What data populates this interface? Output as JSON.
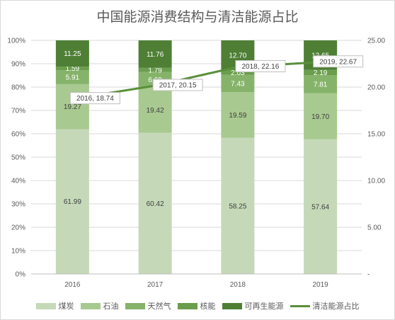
{
  "chart_data": {
    "type": "bar",
    "stacked": true,
    "title": "中国能源消费结构与清洁能源占比",
    "categories": [
      "2016",
      "2017",
      "2018",
      "2019"
    ],
    "series": [
      {
        "name": "煤炭",
        "type": "bar",
        "color": "#c5d9b8",
        "values": [
          61.99,
          60.42,
          58.25,
          57.64
        ]
      },
      {
        "name": "石油",
        "type": "bar",
        "color": "#a8c990",
        "values": [
          19.27,
          19.42,
          19.59,
          19.7
        ]
      },
      {
        "name": "天然气",
        "type": "bar",
        "color": "#86b36a",
        "values": [
          5.91,
          6.6,
          7.43,
          7.81
        ]
      },
      {
        "name": "核能",
        "type": "bar",
        "color": "#6a9e4c",
        "values": [
          1.59,
          1.79,
          2.03,
          2.19
        ]
      },
      {
        "name": "可再生能源",
        "type": "bar",
        "color": "#4e7f35",
        "values": [
          11.25,
          11.76,
          12.7,
          12.65
        ]
      },
      {
        "name": "清洁能源占比",
        "type": "line",
        "axis": "right",
        "color": "#5a8f3a",
        "values": [
          18.74,
          20.15,
          22.16,
          22.67
        ]
      }
    ],
    "line_labels": [
      "2016, 18.74",
      "2017, 20.15",
      "2018, 22.16",
      "2019, 22.67"
    ],
    "y_left": {
      "min": 0,
      "max": 100,
      "ticks": [
        "0%",
        "10%",
        "20%",
        "30%",
        "40%",
        "50%",
        "60%",
        "70%",
        "80%",
        "90%",
        "100%"
      ]
    },
    "y_right": {
      "min": 0,
      "max": 25,
      "ticks": [
        "-",
        "5.00",
        "10.00",
        "15.00",
        "20.00",
        "25.00"
      ]
    },
    "grid": true,
    "legend_position": "bottom"
  }
}
